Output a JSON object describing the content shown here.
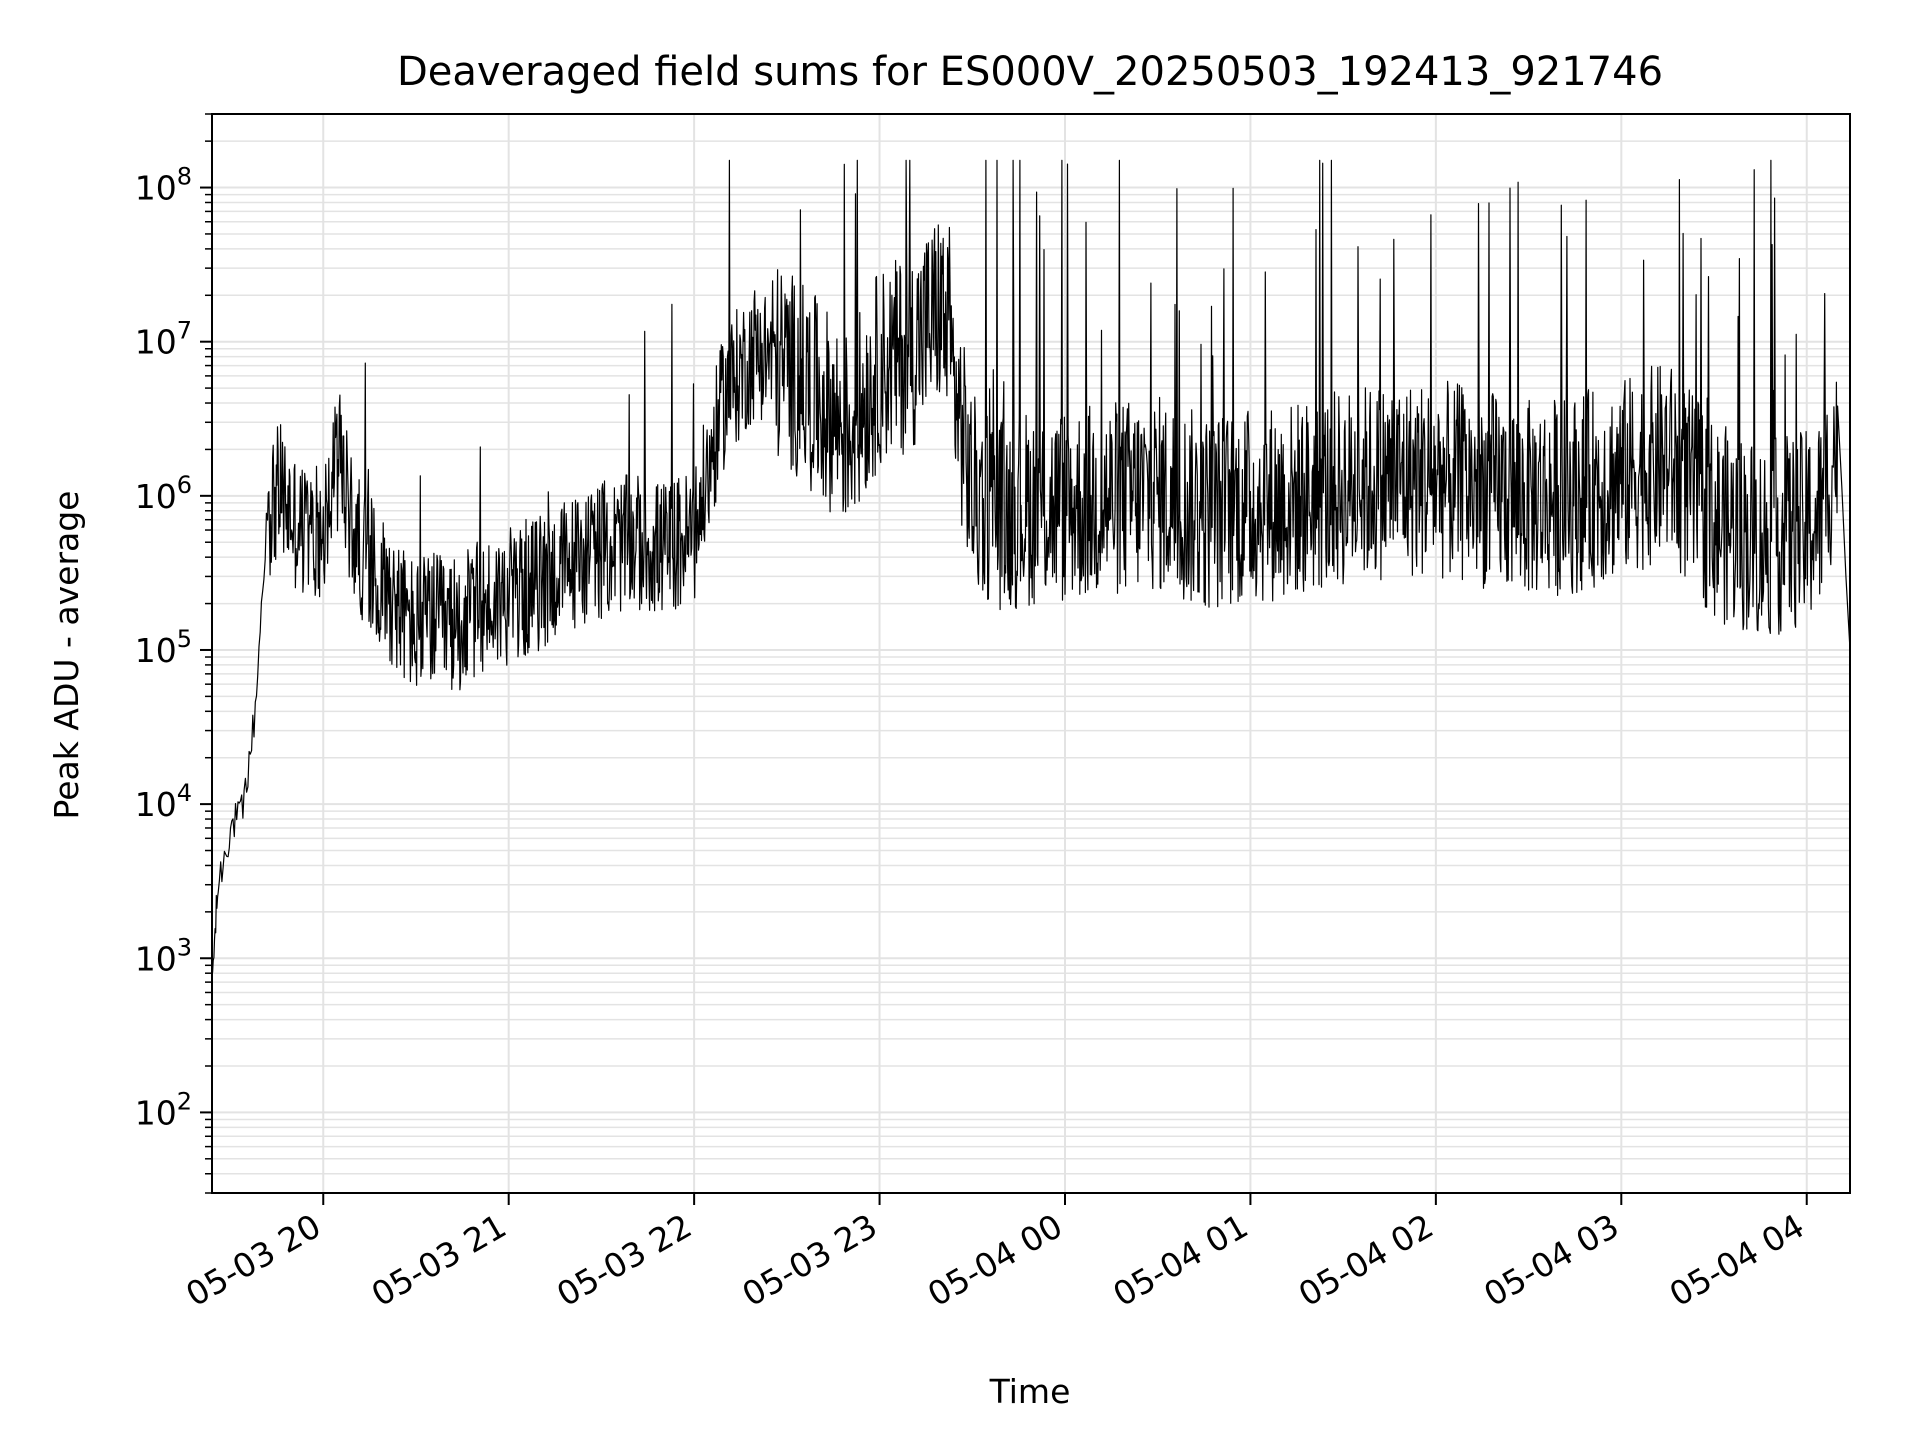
{
  "chart_data": {
    "type": "line",
    "title": "Deaveraged field sums for ES000V_20250503_192413_921746",
    "xlabel": "Time",
    "ylabel": "Peak ADU - average",
    "yscale": "log",
    "ylim": [
      30,
      300000000
    ],
    "xlim": [
      "2025-05-03 19:24",
      "2025-05-04 04:14"
    ],
    "grid": true,
    "line_color": "#000000",
    "grid_color": "#e3e3e3",
    "x_ticks": [
      {
        "value": "2025-05-03 20:00",
        "label": "05-03 20"
      },
      {
        "value": "2025-05-03 21:00",
        "label": "05-03 21"
      },
      {
        "value": "2025-05-03 22:00",
        "label": "05-03 22"
      },
      {
        "value": "2025-05-03 23:00",
        "label": "05-03 23"
      },
      {
        "value": "2025-05-04 00:00",
        "label": "05-04 00"
      },
      {
        "value": "2025-05-04 01:00",
        "label": "05-04 01"
      },
      {
        "value": "2025-05-04 02:00",
        "label": "05-04 02"
      },
      {
        "value": "2025-05-04 03:00",
        "label": "05-04 03"
      },
      {
        "value": "2025-05-04 04:00",
        "label": "05-04 04"
      }
    ],
    "y_ticks": [
      {
        "value": 100,
        "base": "10",
        "exp": "2"
      },
      {
        "value": 1000,
        "base": "10",
        "exp": "3"
      },
      {
        "value": 10000,
        "base": "10",
        "exp": "4"
      },
      {
        "value": 100000,
        "base": "10",
        "exp": "5"
      },
      {
        "value": 1000000,
        "base": "10",
        "exp": "6"
      },
      {
        "value": 10000000,
        "base": "10",
        "exp": "7"
      },
      {
        "value": 100000000,
        "base": "10",
        "exp": "8"
      }
    ],
    "series": [
      {
        "x": [
          "2025-05-03 19:24",
          "2025-05-03 19:26",
          "2025-05-03 19:30",
          "2025-05-03 19:34",
          "2025-05-03 19:38",
          "2025-05-03 19:42",
          "2025-05-03 19:46",
          "2025-05-03 19:50",
          "2025-05-03 19:55",
          "2025-05-03 20:00",
          "2025-05-03 20:05",
          "2025-05-03 20:10",
          "2025-05-03 20:15",
          "2025-05-03 20:20",
          "2025-05-03 20:25",
          "2025-05-03 20:30",
          "2025-05-03 20:35",
          "2025-05-03 20:40",
          "2025-05-03 20:50",
          "2025-05-03 21:00",
          "2025-05-03 21:10",
          "2025-05-03 21:20",
          "2025-05-03 21:30",
          "2025-05-03 21:40",
          "2025-05-03 21:50",
          "2025-05-03 22:00",
          "2025-05-03 22:10",
          "2025-05-03 22:20",
          "2025-05-03 22:30",
          "2025-05-03 22:40",
          "2025-05-03 22:50",
          "2025-05-03 23:00",
          "2025-05-03 23:10",
          "2025-05-03 23:20",
          "2025-05-03 23:30",
          "2025-05-03 23:40",
          "2025-05-03 23:50",
          "2025-05-04 00:00",
          "2025-05-04 00:15",
          "2025-05-04 00:30",
          "2025-05-04 00:45",
          "2025-05-04 01:00",
          "2025-05-04 01:15",
          "2025-05-04 01:30",
          "2025-05-04 01:45",
          "2025-05-04 02:00",
          "2025-05-04 02:15",
          "2025-05-04 02:30",
          "2025-05-04 02:45",
          "2025-05-04 03:00",
          "2025-05-04 03:15",
          "2025-05-04 03:30",
          "2025-05-04 03:45",
          "2025-05-04 04:00",
          "2025-05-04 04:05",
          "2025-05-04 04:10",
          "2025-05-04 04:14"
        ],
        "y": [
          700,
          3000,
          7000,
          9000,
          40000,
          900000,
          1200000,
          800000,
          600000,
          700000,
          2000000,
          600000,
          400000,
          300000,
          200000,
          150000,
          180000,
          150000,
          200000,
          250000,
          300000,
          400000,
          500000,
          550000,
          500000,
          600000,
          5000000,
          10000000,
          8000000,
          5000000,
          3000000,
          8000000,
          10000000,
          20000000,
          1200000,
          900000,
          1000000,
          1000000,
          1100000,
          1200000,
          900000,
          1000000,
          1100000,
          1300000,
          1500000,
          1500000,
          1300000,
          1100000,
          1200000,
          1500000,
          2000000,
          800000,
          600000,
          700000,
          900000,
          3000000,
          100000
        ]
      }
    ]
  }
}
